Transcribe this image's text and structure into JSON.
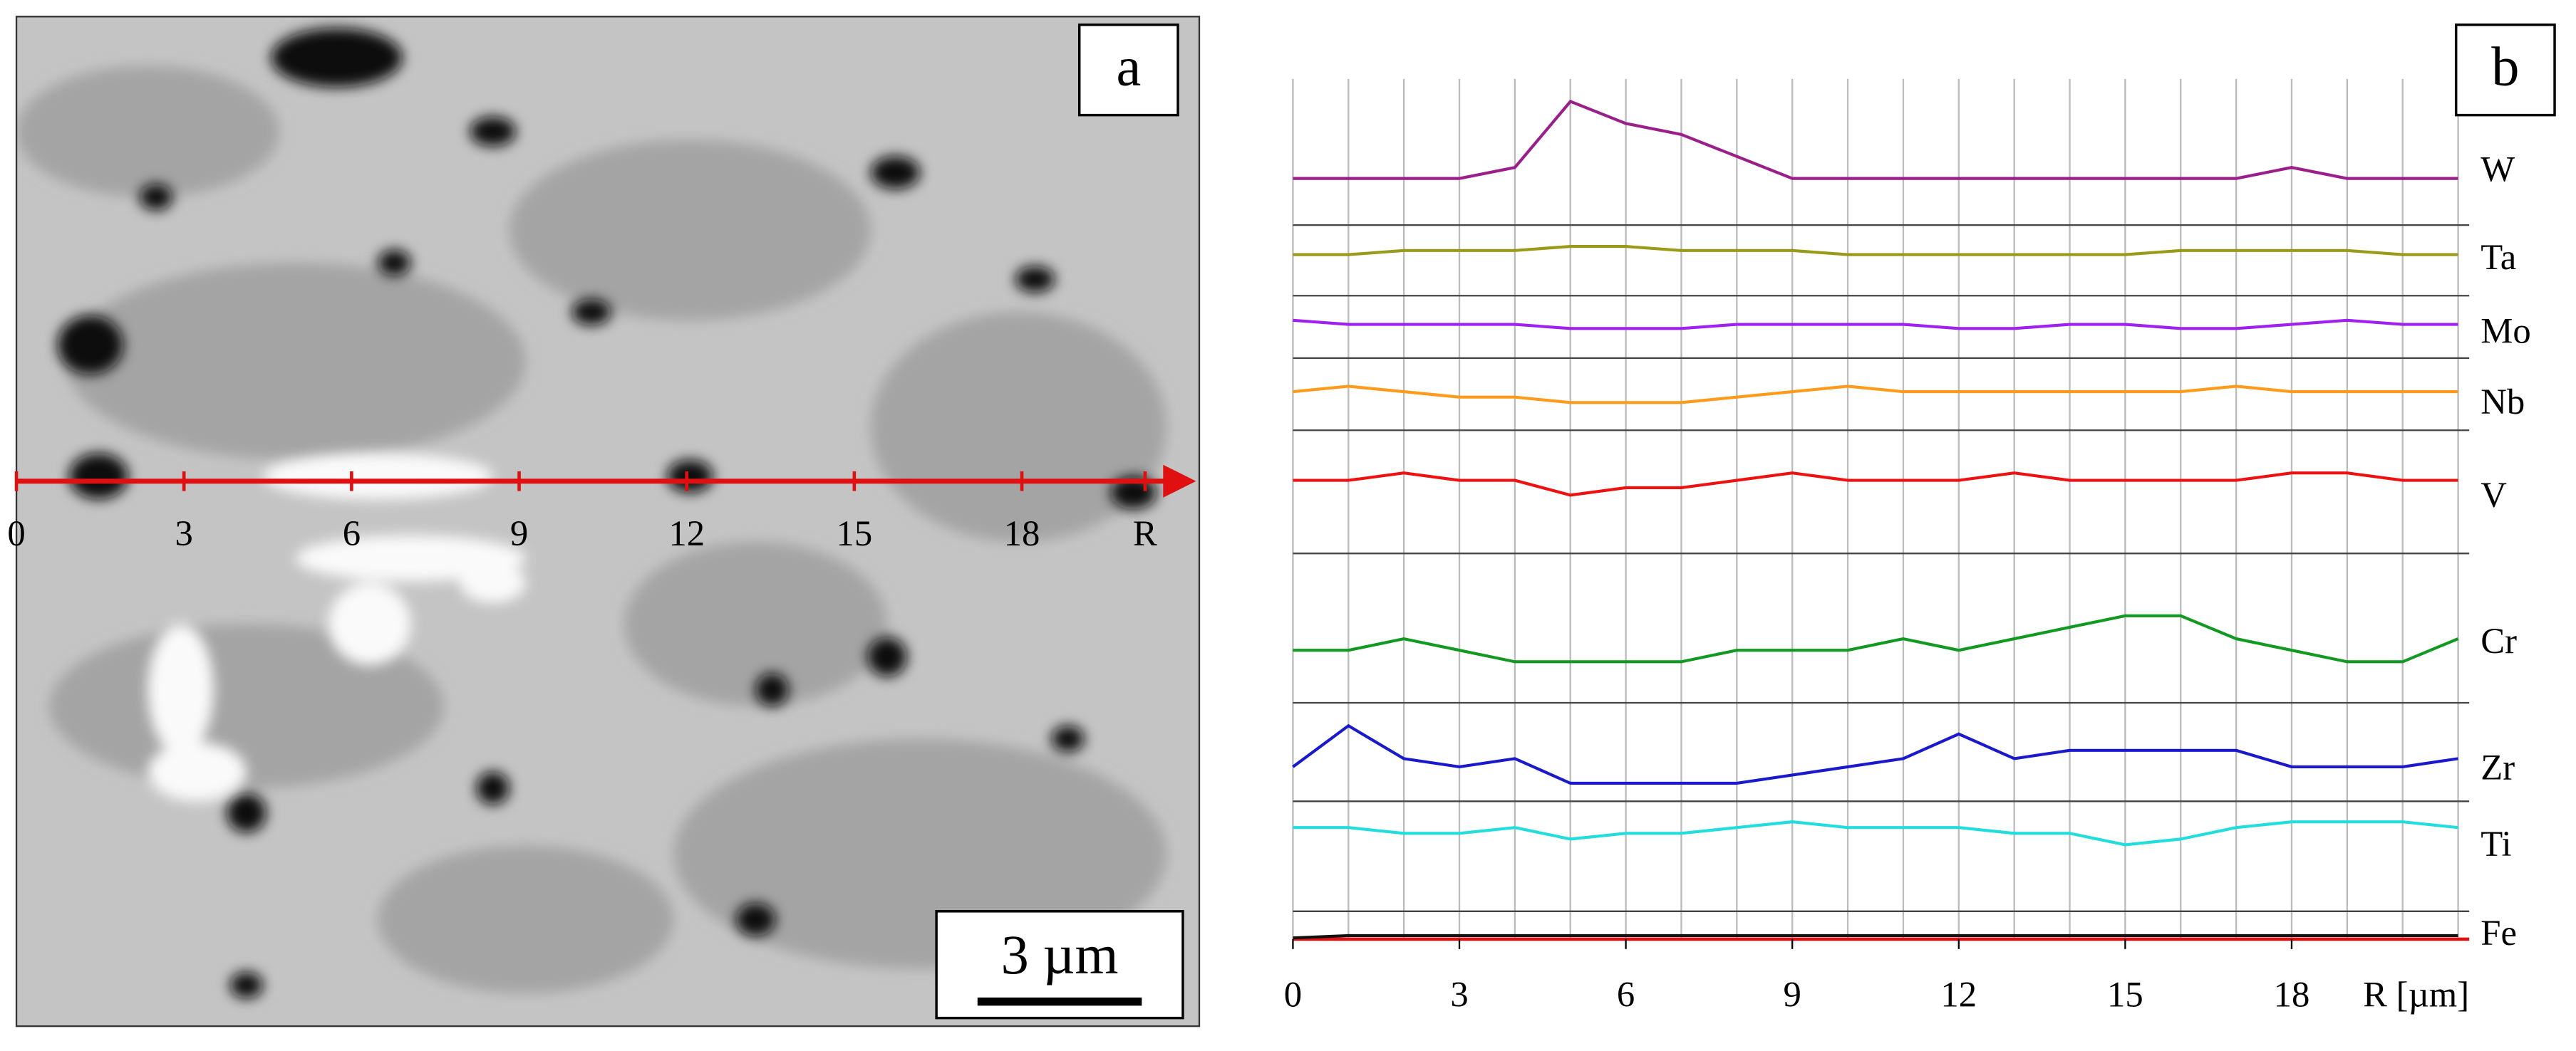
{
  "image_panel": {
    "label": "a",
    "scale_bar": "3 µm",
    "line_labels": [
      "0",
      "3",
      "6",
      "9",
      "12",
      "15",
      "18",
      "R"
    ]
  },
  "chart_data": {
    "type": "line",
    "panel_label": "b",
    "xlabel": "R [µm]",
    "x": [
      0,
      1,
      2,
      3,
      4,
      5,
      6,
      7,
      8,
      9,
      10,
      11,
      12,
      13,
      14,
      15,
      16,
      17,
      18,
      19,
      20,
      21
    ],
    "xlim": [
      0,
      21.2
    ],
    "xticks": [
      0,
      3,
      6,
      9,
      12,
      15,
      18
    ],
    "ylim": [
      0,
      10
    ],
    "grid": true,
    "series": [
      {
        "name": "W",
        "color": "#9b1f8a",
        "values": [
          2,
          2,
          2,
          2,
          3,
          9,
          7,
          6,
          4,
          2,
          2,
          2,
          2,
          2,
          2,
          2,
          2,
          2,
          3,
          2,
          2,
          2
        ]
      },
      {
        "name": "Ta",
        "color": "#9a9a1a",
        "values": [
          4,
          4,
          5,
          5,
          5,
          6,
          6,
          5,
          5,
          5,
          4,
          4,
          4,
          4,
          4,
          4,
          5,
          5,
          5,
          5,
          4,
          4
        ]
      },
      {
        "name": "Mo",
        "color": "#a020f0",
        "values": [
          6,
          5,
          5,
          5,
          5,
          4,
          4,
          4,
          5,
          5,
          5,
          5,
          4,
          4,
          5,
          5,
          4,
          4,
          5,
          6,
          5,
          5
        ]
      },
      {
        "name": "Nb",
        "color": "#ff9a1a",
        "values": [
          5,
          6,
          5,
          4,
          4,
          3,
          3,
          3,
          4,
          5,
          6,
          5,
          5,
          5,
          5,
          5,
          5,
          6,
          5,
          5,
          5,
          5
        ]
      },
      {
        "name": "V",
        "color": "#ee1111",
        "values": [
          5,
          5,
          6,
          5,
          5,
          3,
          4,
          4,
          5,
          6,
          5,
          5,
          5,
          6,
          5,
          5,
          5,
          5,
          6,
          6,
          5,
          5
        ]
      },
      {
        "name": "Cr",
        "color": "#119922",
        "values": [
          2,
          2,
          3,
          2,
          1,
          1,
          1,
          1,
          2,
          2,
          2,
          3,
          2,
          3,
          4,
          5,
          5,
          3,
          2,
          1,
          1,
          3
        ]
      },
      {
        "name": "Zr",
        "color": "#1a1acc",
        "values": [
          3,
          8,
          4,
          3,
          4,
          1,
          1,
          1,
          1,
          2,
          3,
          4,
          7,
          4,
          5,
          5,
          5,
          5,
          3,
          3,
          3,
          4
        ]
      },
      {
        "name": "Ti",
        "color": "#22dddd",
        "values": [
          6,
          6,
          5,
          5,
          6,
          4,
          5,
          5,
          6,
          7,
          6,
          6,
          6,
          5,
          5,
          3,
          4,
          6,
          7,
          7,
          7,
          6
        ]
      },
      {
        "name": "Fe",
        "color": "#111111",
        "values": [
          2,
          3,
          3,
          3,
          3,
          3,
          3,
          3,
          3,
          3,
          3,
          3,
          3,
          3,
          3,
          3,
          3,
          3,
          3,
          3,
          3,
          3
        ]
      }
    ]
  }
}
